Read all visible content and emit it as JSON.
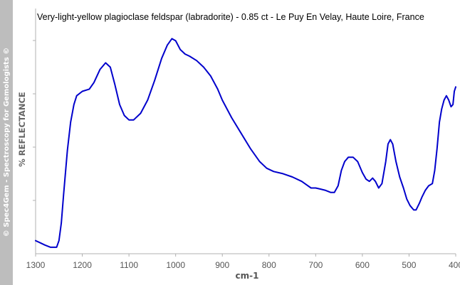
{
  "watermark": "© Spec4Gem - Spectroscopy for Gemologists ©",
  "colors": {
    "line": "#0000cc",
    "axis": "#b0b0b0",
    "text": "#555555",
    "banner": "#bdbdbd"
  },
  "chart_data": {
    "type": "line",
    "title": "Very-light-yellow plagioclase feldspar (labradorite) -  0.85 ct - Le Puy En Velay, Haute Loire, France",
    "xlabel": "cm-1",
    "ylabel": "% REFLECTANCE",
    "x_reversed": true,
    "xlim": [
      1300,
      400
    ],
    "ylim": [
      0,
      1
    ],
    "x_ticks": [
      "1300",
      "1200",
      "1100",
      "1000",
      "900",
      "800",
      "700",
      "600",
      "500",
      "400"
    ],
    "y_ticks_labeled": false,
    "grid": false,
    "series": [
      {
        "values": [
          [
            1300,
            0.04
          ],
          [
            1290,
            0.03
          ],
          [
            1280,
            0.02
          ],
          [
            1268,
            0.01
          ],
          [
            1255,
            0.01
          ],
          [
            1250,
            0.04
          ],
          [
            1245,
            0.12
          ],
          [
            1240,
            0.25
          ],
          [
            1232,
            0.45
          ],
          [
            1225,
            0.58
          ],
          [
            1218,
            0.66
          ],
          [
            1212,
            0.7
          ],
          [
            1200,
            0.72
          ],
          [
            1185,
            0.73
          ],
          [
            1175,
            0.76
          ],
          [
            1162,
            0.82
          ],
          [
            1150,
            0.85
          ],
          [
            1140,
            0.83
          ],
          [
            1130,
            0.75
          ],
          [
            1120,
            0.66
          ],
          [
            1110,
            0.61
          ],
          [
            1100,
            0.59
          ],
          [
            1090,
            0.59
          ],
          [
            1075,
            0.62
          ],
          [
            1060,
            0.68
          ],
          [
            1045,
            0.77
          ],
          [
            1030,
            0.87
          ],
          [
            1018,
            0.93
          ],
          [
            1008,
            0.96
          ],
          [
            1000,
            0.95
          ],
          [
            990,
            0.91
          ],
          [
            980,
            0.89
          ],
          [
            970,
            0.88
          ],
          [
            955,
            0.86
          ],
          [
            940,
            0.83
          ],
          [
            925,
            0.79
          ],
          [
            910,
            0.73
          ],
          [
            900,
            0.68
          ],
          [
            880,
            0.6
          ],
          [
            860,
            0.53
          ],
          [
            840,
            0.46
          ],
          [
            820,
            0.4
          ],
          [
            805,
            0.37
          ],
          [
            790,
            0.355
          ],
          [
            770,
            0.345
          ],
          [
            750,
            0.33
          ],
          [
            730,
            0.31
          ],
          [
            720,
            0.295
          ],
          [
            710,
            0.28
          ],
          [
            700,
            0.28
          ],
          [
            690,
            0.275
          ],
          [
            680,
            0.27
          ],
          [
            668,
            0.26
          ],
          [
            660,
            0.26
          ],
          [
            652,
            0.29
          ],
          [
            645,
            0.36
          ],
          [
            638,
            0.4
          ],
          [
            630,
            0.42
          ],
          [
            620,
            0.42
          ],
          [
            610,
            0.4
          ],
          [
            600,
            0.35
          ],
          [
            592,
            0.32
          ],
          [
            585,
            0.31
          ],
          [
            578,
            0.325
          ],
          [
            572,
            0.31
          ],
          [
            565,
            0.28
          ],
          [
            558,
            0.3
          ],
          [
            550,
            0.4
          ],
          [
            545,
            0.48
          ],
          [
            540,
            0.5
          ],
          [
            535,
            0.48
          ],
          [
            528,
            0.4
          ],
          [
            520,
            0.33
          ],
          [
            512,
            0.28
          ],
          [
            505,
            0.23
          ],
          [
            498,
            0.2
          ],
          [
            490,
            0.18
          ],
          [
            485,
            0.18
          ],
          [
            478,
            0.21
          ],
          [
            472,
            0.24
          ],
          [
            465,
            0.27
          ],
          [
            458,
            0.29
          ],
          [
            450,
            0.3
          ],
          [
            445,
            0.36
          ],
          [
            440,
            0.46
          ],
          [
            435,
            0.58
          ],
          [
            430,
            0.64
          ],
          [
            425,
            0.68
          ],
          [
            420,
            0.7
          ],
          [
            415,
            0.68
          ],
          [
            410,
            0.65
          ],
          [
            406,
            0.66
          ],
          [
            403,
            0.72
          ],
          [
            400,
            0.74
          ]
        ]
      }
    ]
  }
}
